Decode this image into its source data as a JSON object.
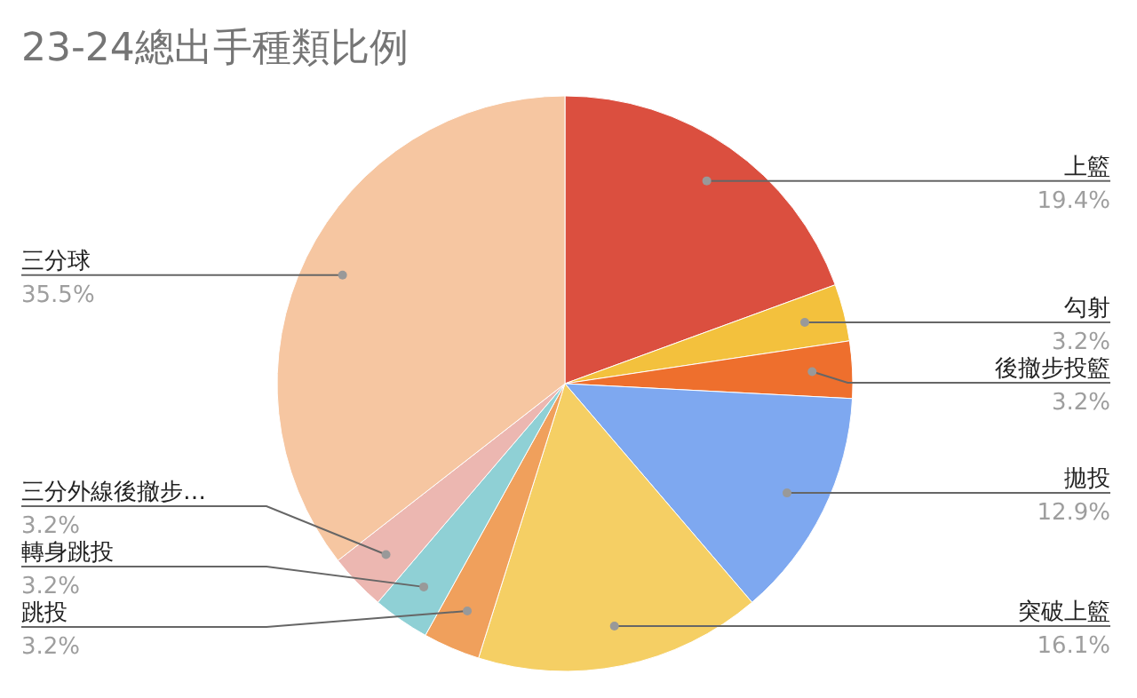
{
  "chart_data": {
    "type": "pie",
    "title": "23-24總出手種類比例",
    "categories": [
      "上籃",
      "勾射",
      "後撤步投籃",
      "拋投",
      "突破上籃",
      "跳投",
      "轉身跳投",
      "三分外線後撤步…",
      "三分球"
    ],
    "values": [
      19.4,
      3.2,
      3.2,
      12.9,
      16.1,
      3.2,
      3.2,
      3.2,
      35.5
    ],
    "value_labels": [
      "19.4%",
      "3.2%",
      "3.2%",
      "12.9%",
      "16.1%",
      "3.2%",
      "3.2%",
      "3.2%",
      "35.5%"
    ],
    "colors": [
      "#db4f3f",
      "#f3c13d",
      "#ee6f2d",
      "#7ea8f0",
      "#f5cf64",
      "#f0a05c",
      "#8fd0d5",
      "#ecb7b1",
      "#f6c6a1"
    ]
  }
}
